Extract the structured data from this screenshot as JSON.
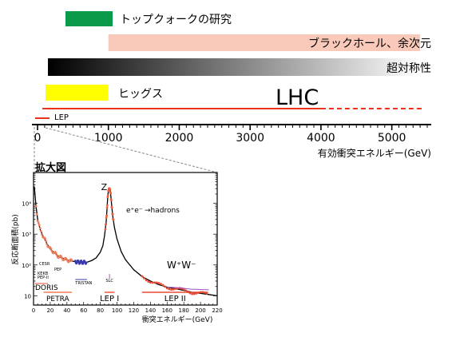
{
  "colors": {
    "top": "#0a9a4a",
    "extra_dim": "#f9c9b9",
    "higgs": "#ffff00",
    "lhc": "#e8321a",
    "black": "#000000",
    "petra": "#f07d5a",
    "lep1": "#f05a37",
    "lep2": "#e84a35",
    "tristan_band": "#3a3aa8",
    "lep2_purple": "#a050c0",
    "ww": "#b8e0c8"
  },
  "chart_data": [
    {
      "type": "bar",
      "title": "",
      "xlabel": "有効衝突エネルギー(GeV)",
      "xlim": [
        0,
        5500
      ],
      "xticks": [
        0,
        1000,
        2000,
        3000,
        4000,
        5000
      ],
      "xtick_labels": [
        "0",
        "1000",
        "2000",
        "3000",
        "4000",
        "5000"
      ],
      "ranges": [
        {
          "label": "トップクォークの研究",
          "start": 350,
          "end": 1000
        },
        {
          "label": "ブラックホール、余次元",
          "start": 1000,
          "end": 5400
        },
        {
          "label": "超対称性",
          "start": 150,
          "end": 5400
        },
        {
          "label": "ヒッグス",
          "start": 110,
          "end": 1000
        }
      ],
      "lines": [
        {
          "label": "LHC",
          "solid_end": 4000,
          "dashed_end": 5600
        },
        {
          "label": "LEP",
          "start": 0,
          "end": 200
        }
      ]
    },
    {
      "type": "line",
      "title": "拡大図",
      "xlabel": "衝突エネルギー(GeV)",
      "ylabel": "反応断面積(pb)",
      "xlim": [
        0,
        220
      ],
      "ylim": [
        5,
        100000
      ],
      "yscale": "log",
      "xticks": [
        0,
        20,
        40,
        60,
        80,
        100,
        120,
        140,
        160,
        180,
        200,
        220
      ],
      "yticks": [
        10,
        100,
        1000,
        10000
      ],
      "ytick_labels": [
        "10",
        "10²",
        "10³",
        "10⁴"
      ],
      "annotations": {
        "z": "Z",
        "process_ee": "e⁺e⁻",
        "process_arrow": "→hadrons",
        "ww": "W⁺W⁻"
      },
      "experiments": [
        {
          "label": "PETRA",
          "xmin": 12,
          "xmax": 46
        },
        {
          "label": "LEP I",
          "xmin": 85,
          "xmax": 97
        },
        {
          "label": "LEP II",
          "xmin": 130,
          "xmax": 209
        },
        {
          "label": "DORIS"
        },
        {
          "label": "TRISTAN",
          "xmin": 50,
          "xmax": 64
        },
        {
          "label": "CESR"
        },
        {
          "label": "PEP"
        },
        {
          "label": "KEKB"
        },
        {
          "label": "PEP-II"
        },
        {
          "label": "SLC"
        }
      ],
      "curve": {
        "x": [
          1,
          3,
          5,
          8,
          12,
          16,
          20,
          25,
          30,
          35,
          40,
          45,
          50,
          55,
          60,
          65,
          70,
          75,
          80,
          83,
          85,
          87,
          88,
          89,
          90,
          91,
          92,
          93,
          94,
          95,
          97,
          100,
          105,
          110,
          120,
          130,
          140,
          150,
          160,
          170,
          180,
          190,
          200,
          210,
          220
        ],
        "y": [
          35000,
          8000,
          3000,
          1400,
          800,
          500,
          330,
          250,
          190,
          165,
          145,
          135,
          128,
          124,
          122,
          125,
          140,
          170,
          260,
          420,
          900,
          2600,
          6500,
          18000,
          29000,
          31000,
          25000,
          13000,
          6500,
          3600,
          1600,
          700,
          270,
          150,
          70,
          42,
          30,
          23,
          19,
          17,
          15,
          13,
          12,
          11,
          10
        ]
      }
    }
  ]
}
